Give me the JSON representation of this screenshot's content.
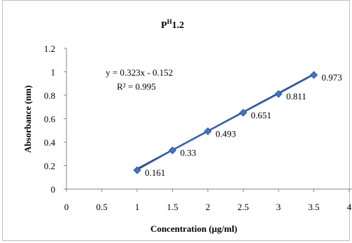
{
  "chart_data": {
    "type": "scatter",
    "title_main": "P",
    "title_sup": "H",
    "title_rest": "1.2",
    "xlabel": "Concentration (µg/ml)",
    "ylabel": "Absorbance (nm)",
    "xlim": [
      0,
      4
    ],
    "ylim": [
      0,
      1.2
    ],
    "x_ticks": [
      "0",
      "0.5",
      "1",
      "1.5",
      "2",
      "2.5",
      "3",
      "3.5",
      "4"
    ],
    "y_ticks": [
      "0",
      "0.2",
      "0.4",
      "0.6",
      "0.8",
      "1",
      "1.2"
    ],
    "grid": false,
    "x": [
      1,
      1.5,
      2,
      2.5,
      3,
      3.5
    ],
    "y": [
      0.161,
      0.33,
      0.493,
      0.651,
      0.811,
      0.973
    ],
    "data_labels": [
      "0.161",
      "0.33",
      "0.493",
      "0.651",
      "0.811",
      "0.973"
    ],
    "trendline": {
      "slope": 0.323,
      "intercept": -0.152
    },
    "equation": "y = 0.323x - 0.152",
    "r_squared": "R² = 0.995",
    "marker_color": "#4472c4",
    "line_color": "#1f3f6e"
  }
}
